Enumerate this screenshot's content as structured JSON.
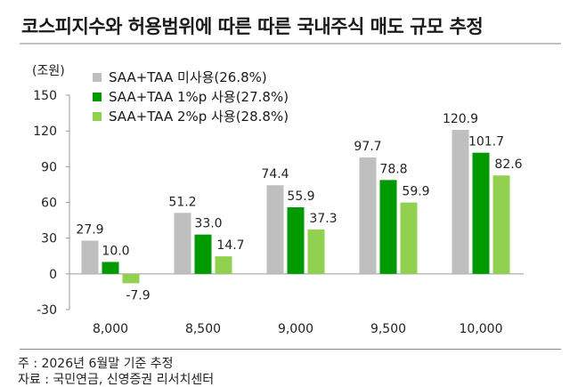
{
  "title": "코스피지수와 허용범위에 따른 따른 국내주식 매도 규모 추정",
  "footnotes": [
    "주 : 2026년 6월말 기준 추정",
    "자료 : 국민연금, 신영증권 리서치센터"
  ],
  "colors": {
    "s1": "#bfbfbf",
    "s2": "#009900",
    "s3": "#92d050"
  },
  "chart_data": {
    "type": "bar",
    "unit_label": "(조원)",
    "categories": [
      "8,000",
      "8,500",
      "9,000",
      "9,500",
      "10,000"
    ],
    "series": [
      {
        "name": "SAA+TAA 미사용(26.8%)",
        "values": [
          27.9,
          51.2,
          74.4,
          97.7,
          120.9
        ],
        "labels": [
          "27.9",
          "51.2",
          "74.4",
          "97.7",
          "120.9"
        ]
      },
      {
        "name": "SAA+TAA 1%p 사용(27.8%)",
        "values": [
          10.0,
          33.0,
          55.9,
          78.8,
          101.7
        ],
        "labels": [
          "10.0",
          "33.0",
          "55.9",
          "78.8",
          "101.7"
        ]
      },
      {
        "name": "SAA+TAA 2%p 사용(28.8%)",
        "values": [
          -7.9,
          14.7,
          37.3,
          59.9,
          82.6
        ],
        "labels": [
          "-7.9",
          "14.7",
          "37.3",
          "59.9",
          "82.6"
        ]
      }
    ],
    "yticks": [
      "150",
      "120",
      "90",
      "60",
      "30",
      "0",
      "-30"
    ],
    "ytick_values": [
      150,
      120,
      90,
      60,
      30,
      0,
      -30
    ],
    "ylim": [
      -30,
      150
    ],
    "grid": false,
    "legend": "top-left"
  }
}
